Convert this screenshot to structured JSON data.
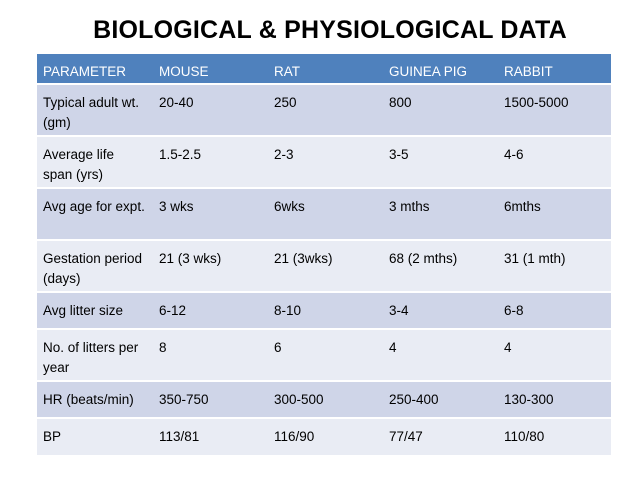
{
  "title": "BIOLOGICAL & PHYSIOLOGICAL DATA",
  "table": {
    "headers": [
      "PARAMETER",
      "MOUSE",
      "RAT",
      "GUINEA PIG",
      "RABBIT"
    ],
    "rows": [
      [
        "Typical adult wt. (gm)",
        "20-40",
        "250",
        "800",
        "1500-5000"
      ],
      [
        "Average life span (yrs)",
        "1.5-2.5",
        "2-3",
        "3-5",
        "4-6"
      ],
      [
        "Avg age for expt.",
        "3 wks",
        "6wks",
        "3 mths",
        "6mths"
      ],
      [
        "Gestation period (days)",
        "21  (3 wks)",
        "21 (3wks)",
        "68 (2 mths)",
        "31 (1 mth)"
      ],
      [
        "Avg litter size",
        "6-12",
        "8-10",
        "3-4",
        "6-8"
      ],
      [
        "No. of litters per year",
        "8",
        "6",
        "4",
        "4"
      ],
      [
        "HR (beats/min)",
        "350-750",
        "300-500",
        "250-400",
        "130-300"
      ],
      [
        "BP",
        "113/81",
        "116/90",
        "77/47",
        "110/80"
      ]
    ]
  },
  "colors": {
    "header_bg": "#4f81bd",
    "row_odd_bg": "#cfd5e8",
    "row_even_bg": "#e9ecf4"
  }
}
